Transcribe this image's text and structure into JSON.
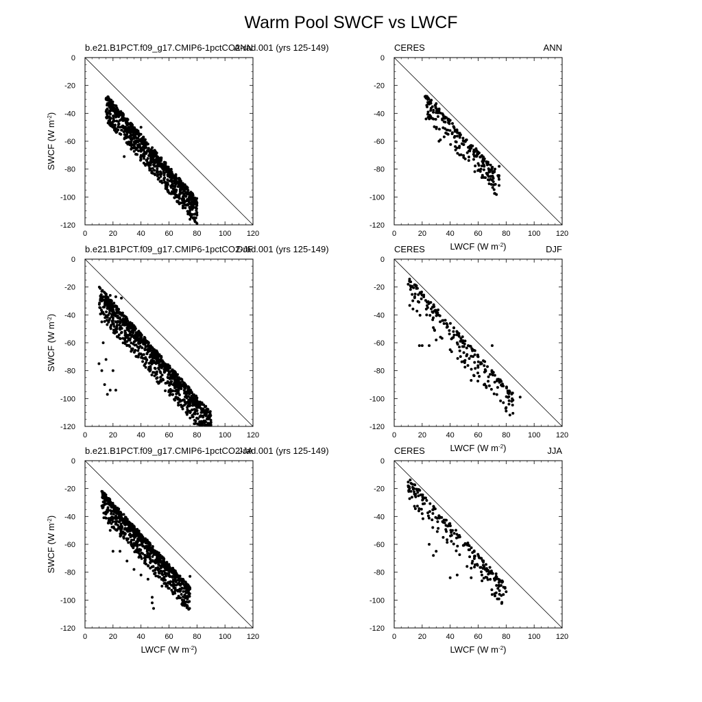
{
  "figure": {
    "title": "Warm Pool SWCF vs LWCF"
  },
  "chart_data": [
    {
      "type": "scatter",
      "title_left": "b.e21.B1PCT.f09_g17.CMIP6-1pctCO2-rad.001 (yrs 125-149)",
      "title_right": "ANN",
      "xlabel": "",
      "ylabel": "SWCF (W m^-2)",
      "xlim": [
        0,
        120
      ],
      "ylim": [
        -120,
        0
      ],
      "xticks": [
        0,
        20,
        40,
        60,
        80,
        100,
        120
      ],
      "yticks": [
        0,
        -20,
        -40,
        -60,
        -80,
        -100,
        -120
      ],
      "reference_line": [
        [
          0,
          0
        ],
        [
          120,
          -120
        ]
      ],
      "cloud": {
        "x_range": [
          15,
          80
        ],
        "slope": -1.15,
        "intercept": -14,
        "spread_above": 5,
        "spread_below": 14,
        "n": 850,
        "seed": 11
      },
      "points": [
        [
          16,
          -33
        ],
        [
          18,
          -33
        ],
        [
          20,
          -35
        ],
        [
          25,
          -45
        ],
        [
          28,
          -71
        ],
        [
          30,
          -55
        ],
        [
          35,
          -58
        ],
        [
          40,
          -50
        ],
        [
          45,
          -62
        ],
        [
          50,
          -68
        ],
        [
          55,
          -78
        ],
        [
          60,
          -82
        ],
        [
          65,
          -86
        ],
        [
          68,
          -95
        ],
        [
          70,
          -100
        ],
        [
          73,
          -98
        ],
        [
          75,
          -116
        ],
        [
          77,
          -108
        ],
        [
          79,
          -112
        ],
        [
          80,
          -113
        ]
      ]
    },
    {
      "type": "scatter",
      "title_left": "CERES",
      "title_right": "ANN",
      "xlabel": "LWCF (W m^-2)",
      "ylabel": "",
      "xlim": [
        0,
        120
      ],
      "ylim": [
        -120,
        0
      ],
      "xticks": [
        0,
        20,
        40,
        60,
        80,
        100,
        120
      ],
      "yticks": [
        0,
        -20,
        -40,
        -60,
        -80,
        -100,
        -120
      ],
      "reference_line": [
        [
          0,
          0
        ],
        [
          120,
          -120
        ]
      ],
      "cloud": {
        "x_range": [
          22,
          75
        ],
        "slope": -1.1,
        "intercept": -5,
        "spread_above": 4,
        "spread_below": 14,
        "n": 230,
        "seed": 23
      },
      "points": [
        [
          22,
          -28
        ],
        [
          24,
          -30
        ],
        [
          30,
          -33
        ],
        [
          32,
          -60
        ],
        [
          33,
          -59
        ],
        [
          40,
          -45
        ],
        [
          50,
          -60
        ],
        [
          55,
          -65
        ],
        [
          60,
          -76
        ],
        [
          62,
          -80
        ],
        [
          64,
          -86
        ],
        [
          66,
          -83
        ],
        [
          70,
          -88
        ],
        [
          72,
          -80
        ],
        [
          75,
          -78
        ]
      ]
    },
    {
      "type": "scatter",
      "title_left": "b.e21.B1PCT.f09_g17.CMIP6-1pctCO2-rad.001 (yrs 125-149)",
      "title_right": "DJF",
      "xlabel": "",
      "ylabel": "SWCF (W m^-2)",
      "xlim": [
        0,
        120
      ],
      "ylim": [
        -120,
        0
      ],
      "xticks": [
        0,
        20,
        40,
        60,
        80,
        100,
        120
      ],
      "yticks": [
        0,
        -20,
        -40,
        -60,
        -80,
        -100,
        -120
      ],
      "reference_line": [
        [
          0,
          0
        ],
        [
          120,
          -120
        ]
      ],
      "cloud": {
        "x_range": [
          10,
          90
        ],
        "slope": -1.13,
        "intercept": -14,
        "spread_above": 6,
        "spread_below": 16,
        "n": 950,
        "seed": 37
      },
      "points": [
        [
          10,
          -75
        ],
        [
          12,
          -80
        ],
        [
          14,
          -90
        ],
        [
          16,
          -97
        ],
        [
          18,
          -94
        ],
        [
          20,
          -80
        ],
        [
          22,
          -94
        ],
        [
          15,
          -72
        ],
        [
          13,
          -60
        ],
        [
          12,
          -45
        ],
        [
          11,
          -35
        ],
        [
          14,
          -27
        ],
        [
          18,
          -26
        ],
        [
          22,
          -27
        ],
        [
          26,
          -28
        ],
        [
          12,
          -30
        ],
        [
          30,
          -62
        ],
        [
          38,
          -70
        ],
        [
          40,
          -68
        ],
        [
          44,
          -72
        ],
        [
          82,
          -113
        ],
        [
          85,
          -116
        ],
        [
          88,
          -118
        ],
        [
          90,
          -117
        ]
      ]
    },
    {
      "type": "scatter",
      "title_left": "CERES",
      "title_right": "DJF",
      "xlabel": "LWCF (W m^-2)",
      "ylabel": "",
      "xlim": [
        0,
        120
      ],
      "ylim": [
        -120,
        0
      ],
      "xticks": [
        0,
        20,
        40,
        60,
        80,
        100,
        120
      ],
      "yticks": [
        0,
        -20,
        -40,
        -60,
        -80,
        -100,
        -120
      ],
      "reference_line": [
        [
          0,
          0
        ],
        [
          120,
          -120
        ]
      ],
      "cloud": {
        "x_range": [
          10,
          85
        ],
        "slope": -1.12,
        "intercept": -5,
        "spread_above": 4,
        "spread_below": 16,
        "n": 210,
        "seed": 41
      },
      "points": [
        [
          10,
          -18
        ],
        [
          12,
          -20
        ],
        [
          15,
          -25
        ],
        [
          20,
          -62
        ],
        [
          18,
          -62
        ],
        [
          25,
          -62
        ],
        [
          30,
          -58
        ],
        [
          40,
          -65
        ],
        [
          45,
          -60
        ],
        [
          55,
          -87
        ],
        [
          60,
          -70
        ],
        [
          70,
          -62
        ],
        [
          78,
          -103
        ],
        [
          80,
          -109
        ],
        [
          82,
          -104
        ],
        [
          84,
          -102
        ],
        [
          90,
          -99
        ]
      ]
    },
    {
      "type": "scatter",
      "title_left": "b.e21.B1PCT.f09_g17.CMIP6-1pctCO2-rad.001 (yrs 125-149)",
      "title_right": "JJA",
      "xlabel": "LWCF (W m^-2)",
      "ylabel": "SWCF (W m^-2)",
      "xlim": [
        0,
        120
      ],
      "ylim": [
        -120,
        0
      ],
      "xticks": [
        0,
        20,
        40,
        60,
        80,
        100,
        120
      ],
      "yticks": [
        0,
        -20,
        -40,
        -60,
        -80,
        -100,
        -120
      ],
      "reference_line": [
        [
          0,
          0
        ],
        [
          120,
          -120
        ]
      ],
      "cloud": {
        "x_range": [
          12,
          75
        ],
        "slope": -1.1,
        "intercept": -13,
        "spread_above": 5,
        "spread_below": 14,
        "n": 800,
        "seed": 53
      },
      "points": [
        [
          12,
          -22
        ],
        [
          13,
          -25
        ],
        [
          14,
          -30
        ],
        [
          15,
          -38
        ],
        [
          18,
          -50
        ],
        [
          20,
          -65
        ],
        [
          25,
          -65
        ],
        [
          30,
          -72
        ],
        [
          35,
          -78
        ],
        [
          40,
          -82
        ],
        [
          45,
          -85
        ],
        [
          48,
          -98
        ],
        [
          48,
          -102
        ],
        [
          49,
          -106
        ],
        [
          55,
          -90
        ],
        [
          60,
          -88
        ],
        [
          65,
          -87
        ],
        [
          70,
          -85
        ],
        [
          75,
          -83
        ]
      ]
    },
    {
      "type": "scatter",
      "title_left": "CERES",
      "title_right": "JJA",
      "xlabel": "LWCF (W m^-2)",
      "ylabel": "",
      "xlim": [
        0,
        120
      ],
      "ylim": [
        -120,
        0
      ],
      "xticks": [
        0,
        20,
        40,
        60,
        80,
        100,
        120
      ],
      "yticks": [
        0,
        -20,
        -40,
        -60,
        -80,
        -100,
        -120
      ],
      "reference_line": [
        [
          0,
          0
        ],
        [
          120,
          -120
        ]
      ],
      "cloud": {
        "x_range": [
          10,
          80
        ],
        "slope": -1.1,
        "intercept": -5,
        "spread_above": 4,
        "spread_below": 14,
        "n": 200,
        "seed": 67
      },
      "points": [
        [
          10,
          -18
        ],
        [
          11,
          -20
        ],
        [
          12,
          -22
        ],
        [
          15,
          -25
        ],
        [
          20,
          -38
        ],
        [
          25,
          -60
        ],
        [
          28,
          -68
        ],
        [
          30,
          -65
        ],
        [
          35,
          -55
        ],
        [
          40,
          -84
        ],
        [
          45,
          -82
        ],
        [
          55,
          -84
        ],
        [
          65,
          -78
        ],
        [
          70,
          -96
        ],
        [
          72,
          -97
        ],
        [
          75,
          -90
        ],
        [
          78,
          -96
        ],
        [
          80,
          -94
        ]
      ]
    }
  ]
}
